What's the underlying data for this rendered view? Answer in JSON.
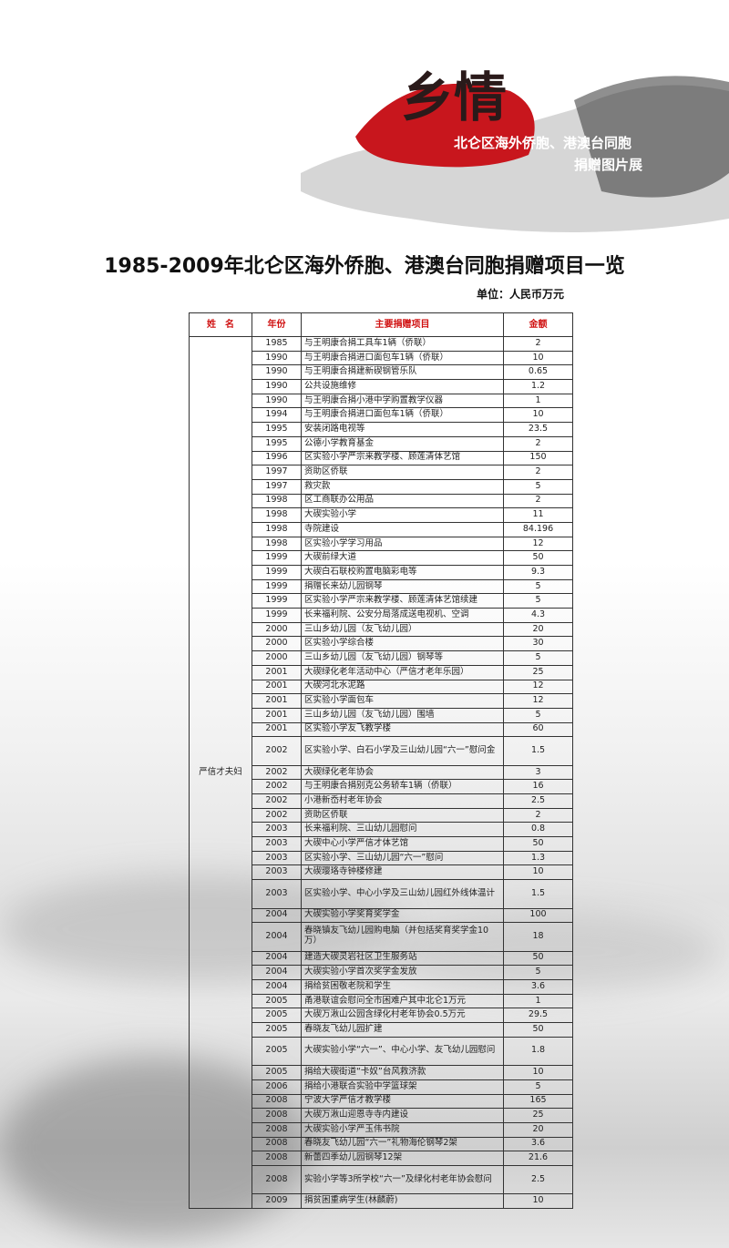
{
  "banner": {
    "logo_text": "乡情",
    "subtitle": "北仑区海外侨胞、港澳台同胞",
    "subtitle2": "捐赠图片展",
    "accent": "#c8161d"
  },
  "title": "1985-2009年北仑区海外侨胞、港澳台同胞捐赠项目一览",
  "unit": "单位：人民币万元",
  "table": {
    "headers": [
      "姓　名",
      "年份",
      "主要捐赠项目",
      "金额"
    ],
    "donor": "严信才夫妇",
    "rows": [
      [
        "1985",
        "与王明康合捐工具车1辆（侨联）",
        "2"
      ],
      [
        "1990",
        "与王明康合捐进口面包车1辆（侨联）",
        "10"
      ],
      [
        "1990",
        "与王明康合捐建新碶钢管乐队",
        "0.65"
      ],
      [
        "1990",
        "公共设施维修",
        "1.2"
      ],
      [
        "1990",
        "与王明康合捐小港中学购置教学仪器",
        "1"
      ],
      [
        "1994",
        "与王明康合捐进口面包车1辆（侨联）",
        "10"
      ],
      [
        "1995",
        "安装闭路电视等",
        "23.5"
      ],
      [
        "1995",
        "公德小学教育基金",
        "2"
      ],
      [
        "1996",
        "区实验小学严宗来教学楼、顾莲清体艺馆",
        "150"
      ],
      [
        "1997",
        "资助区侨联",
        "2"
      ],
      [
        "1997",
        "救灾款",
        "5"
      ],
      [
        "1998",
        "区工商联办公用品",
        "2"
      ],
      [
        "1998",
        "大碶实验小学",
        "11"
      ],
      [
        "1998",
        "寺院建设",
        "84.196"
      ],
      [
        "1998",
        "区实验小学学习用品",
        "12"
      ],
      [
        "1999",
        "大碶前绿大道",
        "50"
      ],
      [
        "1999",
        "大碶白石联校购置电脑彩电等",
        "9.3"
      ],
      [
        "1999",
        "捐赠长来幼儿园钢琴",
        "5"
      ],
      [
        "1999",
        "区实验小学严宗来教学楼、顾莲清体艺馆续建",
        "5"
      ],
      [
        "1999",
        "长来福利院、公安分局落成送电视机、空调",
        "4.3"
      ],
      [
        "2000",
        "三山乡幼儿园（友飞幼儿园）",
        "20"
      ],
      [
        "2000",
        "区实验小学综合楼",
        "30"
      ],
      [
        "2000",
        "三山乡幼儿园（友飞幼儿园）钢琴等",
        "5"
      ],
      [
        "2001",
        "大碶绿化老年活动中心（严信才老年乐园）",
        "25"
      ],
      [
        "2001",
        "大碶河北水泥路",
        "12"
      ],
      [
        "2001",
        "区实验小学面包车",
        "12"
      ],
      [
        "2001",
        "三山乡幼儿园（友飞幼儿园）围墙",
        "5"
      ],
      [
        "2001",
        "区实验小学友飞教学楼",
        "60"
      ],
      [
        "2002",
        "区实验小学、白石小学及三山幼儿园“六一”慰问金",
        "1.5"
      ],
      [
        "2002",
        "大碶绿化老年协会",
        "3"
      ],
      [
        "2002",
        "与王明康合捐别克公务轿车1辆（侨联）",
        "16"
      ],
      [
        "2002",
        "小港新岙村老年协会",
        "2.5"
      ],
      [
        "2002",
        "资助区侨联",
        "2"
      ],
      [
        "2003",
        "长来福利院、三山幼儿园慰问",
        "0.8"
      ],
      [
        "2003",
        "大碶中心小学严信才体艺馆",
        "50"
      ],
      [
        "2003",
        "区实验小学、三山幼儿园“六一”慰问",
        "1.3"
      ],
      [
        "2003",
        "大碶璎珞寺钟楼修建",
        "10"
      ],
      [
        "2003",
        "区实验小学、中心小学及三山幼儿园红外线体温计",
        "1.5"
      ],
      [
        "2004",
        "大碶实验小学奖育奖学金",
        "100"
      ],
      [
        "2004",
        "春晓镇友飞幼儿园购电脑（并包括奖育奖学金10万）",
        "18"
      ],
      [
        "2004",
        "建造大碶灵岩社区卫生服务站",
        "50"
      ],
      [
        "2004",
        "大碶实验小学首次奖学金发放",
        "5"
      ],
      [
        "2004",
        "捐给贫困敬老院和学生",
        "3.6"
      ],
      [
        "2005",
        "甬港联谊会慰问全市困难户其中北仑1万元",
        "1"
      ],
      [
        "2005",
        "大碶万湫山公园含绿化村老年协会0.5万元",
        "29.5"
      ],
      [
        "2005",
        "春晓友飞幼儿园扩建",
        "50"
      ],
      [
        "2005",
        "大碶实验小学“六一”、中心小学、友飞幼儿园慰问",
        "1.8"
      ],
      [
        "2005",
        "捐给大碶街道“卡奴”台风救济款",
        "10"
      ],
      [
        "2006",
        "捐给小港联合实验中学篮球架",
        "5"
      ],
      [
        "2008",
        "宁波大学严信才教学楼",
        "165"
      ],
      [
        "2008",
        "大碶万湫山迎恩寺寺内建设",
        "25"
      ],
      [
        "2008",
        "大碶实验小学严玉伟书院",
        "20"
      ],
      [
        "2008",
        "春晓友飞幼儿园“六一”礼物海伦钢琴2架",
        "3.6"
      ],
      [
        "2008",
        "新蕾四季幼儿园钢琴12架",
        "21.6"
      ],
      [
        "2008",
        "实验小学等3所学校“六一”及绿化村老年协会慰问",
        "2.5"
      ],
      [
        "2009",
        "捐贫困重病学生(林麟蔚)",
        "10"
      ]
    ],
    "two_line_rows": [
      28,
      37,
      39,
      46,
      54
    ]
  }
}
